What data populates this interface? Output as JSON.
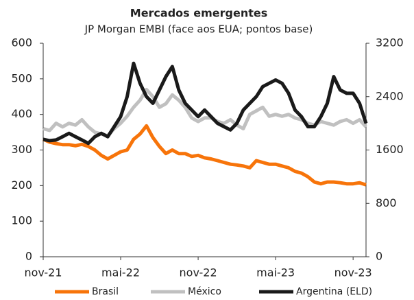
{
  "chart_data": {
    "type": "line",
    "title": "Mercados emergentes",
    "subtitle": "JP Morgan EMBI (face aos EUA; pontos base)",
    "categories": [
      "nov-21",
      null,
      null,
      null,
      null,
      null,
      null,
      null,
      null,
      null,
      null,
      null,
      "mai-22",
      null,
      null,
      null,
      null,
      null,
      null,
      null,
      null,
      null,
      null,
      null,
      "nov-22",
      null,
      null,
      null,
      null,
      null,
      null,
      null,
      null,
      null,
      null,
      null,
      "mai-23",
      null,
      null,
      null,
      null,
      null,
      null,
      null,
      null,
      null,
      null,
      null,
      "nov-23",
      null,
      null
    ],
    "series": [
      {
        "name": "Brasil",
        "color": "#f7740a",
        "values": [
          330,
          322,
          318,
          315,
          315,
          312,
          316,
          310,
          300,
          285,
          275,
          285,
          295,
          300,
          330,
          345,
          368,
          335,
          310,
          290,
          300,
          290,
          290,
          282,
          285,
          278,
          275,
          270,
          265,
          260,
          258,
          255,
          250,
          270,
          265,
          260,
          260,
          255,
          250,
          240,
          235,
          225,
          210,
          205,
          210,
          210,
          208,
          205,
          205,
          208,
          202
        ]
      },
      {
        "name": "México",
        "color": "#c0c0c0",
        "values": [
          360,
          355,
          375,
          365,
          375,
          370,
          385,
          365,
          350,
          345,
          340,
          360,
          375,
          395,
          420,
          440,
          470,
          450,
          420,
          430,
          455,
          440,
          420,
          390,
          380,
          390,
          390,
          380,
          375,
          385,
          370,
          360,
          400,
          410,
          420,
          395,
          400,
          395,
          400,
          390,
          385,
          375,
          370,
          380,
          375,
          370,
          380,
          385,
          375,
          385,
          365
        ]
      },
      {
        "name": "Argentina (ELD)",
        "color": "#1a1a1a",
        "axis": "y2",
        "values": [
          1760,
          1740,
          1750,
          1800,
          1850,
          1800,
          1750,
          1700,
          1800,
          1850,
          1800,
          1950,
          2100,
          2400,
          2900,
          2600,
          2400,
          2300,
          2500,
          2700,
          2850,
          2500,
          2300,
          2200,
          2100,
          2200,
          2100,
          2000,
          1950,
          1900,
          2000,
          2200,
          2300,
          2400,
          2550,
          2600,
          2650,
          2600,
          2450,
          2200,
          2100,
          1950,
          1950,
          2100,
          2300,
          2700,
          2500,
          2450,
          2450,
          2300,
          2000
        ]
      }
    ],
    "ylim": [
      0,
      600
    ],
    "yticks": [
      0,
      100,
      200,
      300,
      400,
      500,
      600
    ],
    "y2lim": [
      0,
      3200
    ],
    "y2ticks": [
      0,
      800,
      1600,
      2400,
      3200
    ],
    "legend": "bottom"
  }
}
